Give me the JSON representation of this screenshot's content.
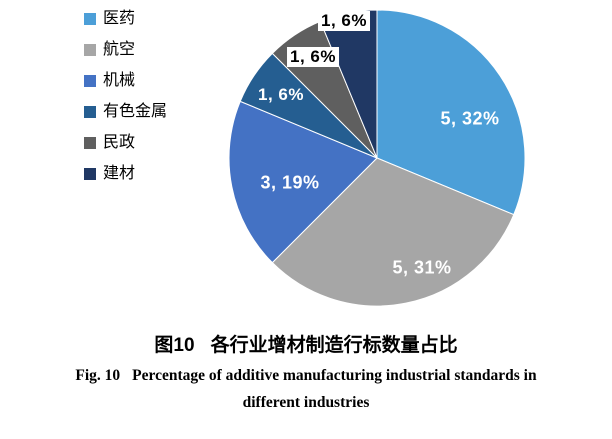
{
  "chart_data": {
    "type": "pie",
    "title": "各行业增材制造行标数量占比",
    "legend_position": "left",
    "start_angle": "12-oclock",
    "direction": "clockwise",
    "categories": [
      "医药",
      "航空",
      "机械",
      "有色金属",
      "民政",
      "建材"
    ],
    "values": [
      5,
      5,
      3,
      1,
      1,
      1
    ],
    "percents": [
      32,
      31,
      19,
      6,
      6,
      6
    ],
    "labels": [
      "5, 32%",
      "5, 31%",
      "3, 19%",
      "1, 6%",
      "1, 6%",
      "1, 6%"
    ],
    "colors": [
      "#4C9FD8",
      "#A6A6A6",
      "#4472C4",
      "#255E91",
      "#5F5F5F",
      "#203864"
    ]
  },
  "caption": {
    "zh_label": "图10",
    "zh_title": "各行业增材制造行标数量占比",
    "en_label": "Fig. 10",
    "en_line1": "Percentage of additive manufacturing industrial standards in",
    "en_line2": "different industries"
  }
}
